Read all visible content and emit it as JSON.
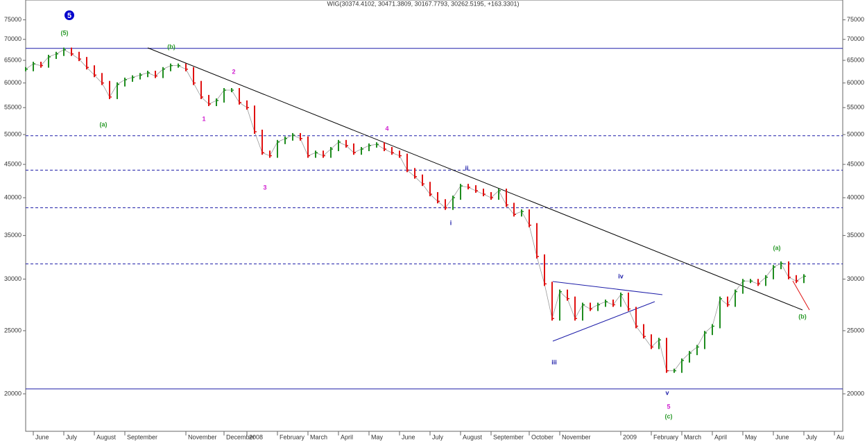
{
  "chart_data": {
    "type": "line",
    "title": "WIG(30374.4102, 30471.3809, 30167.7793, 30262.5195, +163.3301)",
    "categories": [
      null,
      "June",
      null,
      null,
      null,
      "July",
      null,
      null,
      null,
      "August",
      null,
      null,
      null,
      "September",
      null,
      null,
      null,
      null,
      null,
      null,
      null,
      "November",
      null,
      null,
      null,
      null,
      "December",
      null,
      null,
      "2008",
      null,
      null,
      null,
      "February",
      null,
      null,
      null,
      "March",
      null,
      null,
      null,
      "April",
      null,
      null,
      null,
      "May",
      null,
      null,
      null,
      "June",
      null,
      null,
      null,
      "July",
      null,
      null,
      null,
      "August",
      null,
      null,
      null,
      "September",
      null,
      null,
      null,
      null,
      "October",
      null,
      null,
      null,
      "November",
      null,
      null,
      null,
      null,
      null,
      null,
      null,
      "2009",
      null,
      null,
      null,
      "February",
      null,
      null,
      null,
      "March",
      null,
      null,
      null,
      "April",
      null,
      null,
      null,
      "May",
      null,
      null,
      null,
      "June",
      null,
      null,
      null,
      "July",
      null,
      null,
      null,
      "Au"
    ],
    "values": [
      63000,
      64200,
      63800,
      65800,
      66500,
      67500,
      66500,
      65300,
      63400,
      61700,
      60000,
      57100,
      59700,
      60700,
      61200,
      61700,
      62200,
      61500,
      63000,
      63800,
      63800,
      63000,
      60000,
      57100,
      55700,
      56400,
      58500,
      58500,
      56000,
      55000,
      50500,
      46900,
      46400,
      48700,
      49300,
      49900,
      49300,
      46400,
      46900,
      46400,
      47500,
      48700,
      48100,
      46900,
      47500,
      48100,
      48300,
      47500,
      46900,
      46400,
      44100,
      43100,
      42000,
      40500,
      39500,
      38600,
      40000,
      41700,
      41500,
      41000,
      40500,
      40000,
      41000,
      39000,
      37700,
      38100,
      36300,
      32500,
      29500,
      26100,
      28700,
      28000,
      26100,
      27400,
      27000,
      27400,
      27700,
      27400,
      28400,
      27000,
      25400,
      24500,
      23600,
      24200,
      21700,
      21700,
      22500,
      23100,
      23600,
      24800,
      25400,
      28000,
      27400,
      28700,
      29800,
      29800,
      29500,
      30200,
      31300,
      31700,
      30200,
      29800,
      30300,
      null,
      null,
      null,
      null
    ],
    "up_color": "#1e8c1e",
    "down_color": "#e01010",
    "log_scale": true,
    "ylim": [
      17520,
      80450
    ],
    "yticks": [
      20000,
      25000,
      30000,
      35000,
      40000,
      45000,
      50000,
      55000,
      60000,
      65000,
      70000,
      75000
    ],
    "levels": [
      {
        "value": 67800,
        "style": "solid"
      },
      {
        "value": 49800,
        "style": "dashed"
      },
      {
        "value": 44100,
        "style": "dashed"
      },
      {
        "value": 38600,
        "style": "dashed"
      },
      {
        "value": 31650,
        "style": "dashed"
      },
      {
        "value": 20350,
        "style": "solid"
      }
    ],
    "level_color": "#1c1ca8",
    "annotations": [
      {
        "text": "5",
        "color": "#0000cc"
      },
      {
        "text": "(5)",
        "color": "#2a9a2a"
      },
      {
        "text": "(a)",
        "color": "#2a9a2a"
      },
      {
        "text": "(b)",
        "color": "#2a9a2a"
      },
      {
        "text": "1",
        "color": "#d020d0"
      },
      {
        "text": "2",
        "color": "#d020d0"
      },
      {
        "text": "3",
        "color": "#d020d0"
      },
      {
        "text": "4",
        "color": "#d020d0"
      },
      {
        "text": "i",
        "color": "#1c1ca8"
      },
      {
        "text": "ii",
        "color": "#1c1ca8"
      },
      {
        "text": "iii",
        "color": "#1c1ca8"
      },
      {
        "text": "iv",
        "color": "#1c1ca8"
      },
      {
        "text": "v",
        "color": "#1c1ca8"
      },
      {
        "text": "5",
        "color": "#d020d0"
      },
      {
        "text": "(c)",
        "color": "#2a9a2a"
      },
      {
        "text": "(a)",
        "color": "#2a9a2a"
      },
      {
        "text": "(b)",
        "color": "#2a9a2a"
      }
    ]
  }
}
